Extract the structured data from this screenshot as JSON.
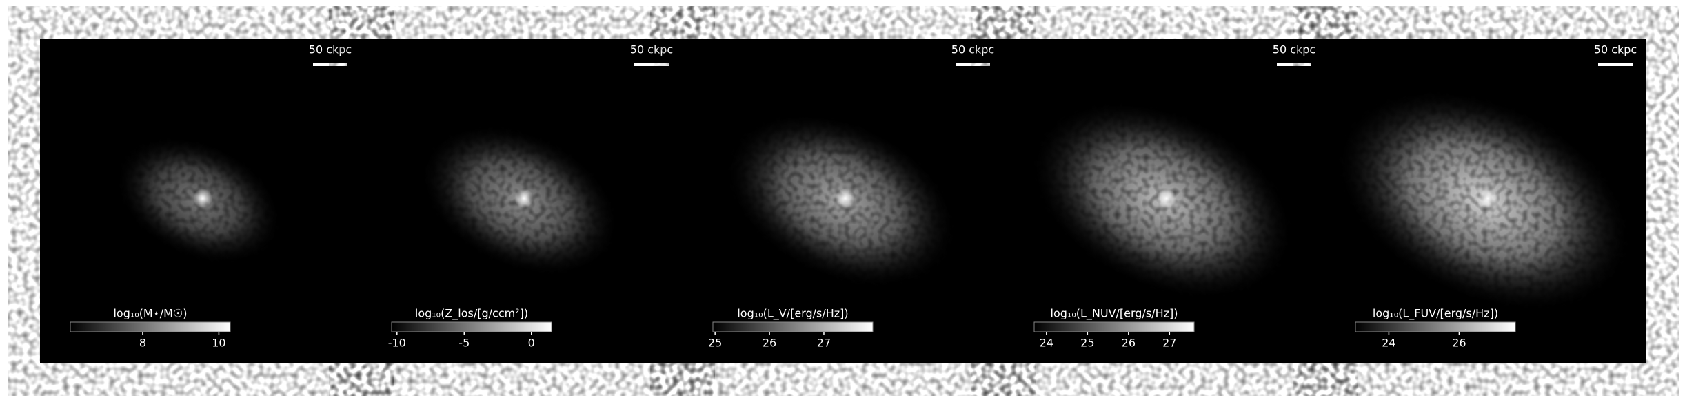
{
  "chart_data": [
    {
      "type": "image",
      "scalebar": "50 ckpc",
      "colorbar_label": "log₁₀(M⋆/M☉)",
      "xlim": [
        6.1,
        10.3
      ],
      "xticks": [
        8,
        10
      ]
    },
    {
      "type": "image",
      "scalebar": "50 ckpc",
      "colorbar_label": "log₁₀(Z_los/[g/ccm²])",
      "xlim": [
        -10.4,
        1.5
      ],
      "xticks": [
        -10,
        -5,
        0
      ]
    },
    {
      "type": "image",
      "scalebar": "50 ckpc",
      "colorbar_label": "log₁₀(L_V/[erg/s/Hz])",
      "xlim": [
        24.96,
        27.9
      ],
      "xticks": [
        25,
        26,
        27
      ]
    },
    {
      "type": "image",
      "scalebar": "50 ckpc",
      "colorbar_label": "log₁₀(L_NUV/[erg/s/Hz])",
      "xlim": [
        23.7,
        27.6
      ],
      "xticks": [
        24,
        25,
        26,
        27
      ]
    },
    {
      "type": "image",
      "scalebar": "50 ckpc",
      "colorbar_label": "log₁₀(L_FUV/[erg/s/Hz])",
      "xlim": [
        23.05,
        27.6
      ],
      "xticks": [
        24,
        26
      ]
    }
  ]
}
